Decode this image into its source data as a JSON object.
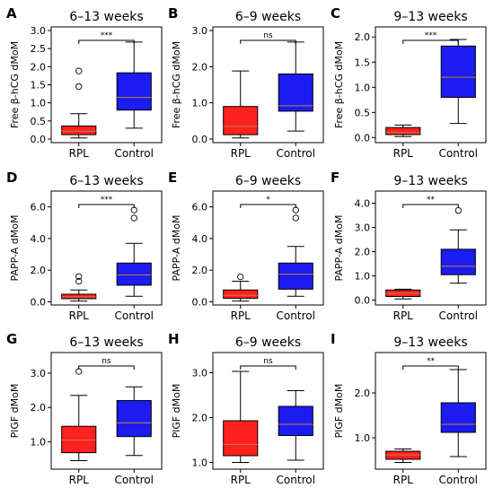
{
  "colors": {
    "rpl": "#ff2020",
    "control": "#1c1cf0",
    "median": "#c08040"
  },
  "chart_data": [
    {
      "type": "box",
      "panel_label": "A",
      "title": "6–13 weeks",
      "ylabel": "Free β-hCG dMoM",
      "ylim": [
        -0.1,
        3.1
      ],
      "yticks": [
        0,
        0.5,
        1,
        1.5,
        2,
        2.5,
        3
      ],
      "yticklabels": [
        "0.0",
        "0.5",
        "1.0",
        "1.5",
        "2.0",
        "2.5",
        "3.0"
      ],
      "categories": [
        "RPL",
        "Control"
      ],
      "significance": "***",
      "boxes": [
        {
          "name": "RPL",
          "whislo": 0.03,
          "q1": 0.12,
          "med": 0.22,
          "q3": 0.36,
          "whishi": 0.7,
          "fliers": [
            1.45,
            1.88
          ]
        },
        {
          "name": "Control",
          "whislo": 0.3,
          "q1": 0.8,
          "med": 1.15,
          "q3": 1.83,
          "whishi": 2.68,
          "fliers": []
        }
      ]
    },
    {
      "type": "box",
      "panel_label": "D",
      "title": "6–13 weeks",
      "ylabel": "PAPP-A dMoM",
      "ylim": [
        -0.2,
        7.0
      ],
      "yticks": [
        0,
        2,
        4,
        6
      ],
      "yticklabels": [
        "0.0",
        "2.0",
        "4.0",
        "6.0"
      ],
      "categories": [
        "RPL",
        "Control"
      ],
      "significance": "***",
      "boxes": [
        {
          "name": "RPL",
          "whislo": 0.05,
          "q1": 0.2,
          "med": 0.32,
          "q3": 0.48,
          "whishi": 0.75,
          "fliers": [
            1.3,
            1.6
          ]
        },
        {
          "name": "Control",
          "whislo": 0.35,
          "q1": 1.05,
          "med": 1.7,
          "q3": 2.45,
          "whishi": 3.7,
          "fliers": [
            5.3,
            5.8
          ]
        }
      ]
    },
    {
      "type": "box",
      "panel_label": "G",
      "title": "6–13 weeks",
      "ylabel": "PlGF dMoM",
      "ylim": [
        0.2,
        3.6
      ],
      "yticks": [
        1,
        2,
        3
      ],
      "yticklabels": [
        "1.0",
        "2.0",
        "3.0"
      ],
      "categories": [
        "RPL",
        "Control"
      ],
      "significance": "ns",
      "boxes": [
        {
          "name": "RPL",
          "whislo": 0.45,
          "q1": 0.68,
          "med": 1.05,
          "q3": 1.45,
          "whishi": 2.35,
          "fliers": [
            3.05
          ]
        },
        {
          "name": "Control",
          "whislo": 0.6,
          "q1": 1.15,
          "med": 1.55,
          "q3": 2.2,
          "whishi": 2.6,
          "fliers": []
        }
      ]
    },
    {
      "type": "box",
      "panel_label": "B",
      "title": "6–9 weeks",
      "ylabel": "Free β-hCG dMoM",
      "ylim": [
        -0.1,
        3.1
      ],
      "yticks": [
        0,
        1,
        2,
        3
      ],
      "yticklabels": [
        "0.0",
        "1.0",
        "2.0",
        "3.0"
      ],
      "categories": [
        "RPL",
        "Control"
      ],
      "significance": "ns",
      "boxes": [
        {
          "name": "RPL",
          "whislo": 0.03,
          "q1": 0.12,
          "med": 0.35,
          "q3": 0.9,
          "whishi": 1.88,
          "fliers": []
        },
        {
          "name": "Control",
          "whislo": 0.22,
          "q1": 0.77,
          "med": 0.92,
          "q3": 1.8,
          "whishi": 2.68,
          "fliers": []
        }
      ]
    },
    {
      "type": "box",
      "panel_label": "E",
      "title": "6–9 weeks",
      "ylabel": "PAPP-A dMoM",
      "ylim": [
        -0.2,
        7.0
      ],
      "yticks": [
        0,
        2,
        4,
        6
      ],
      "yticklabels": [
        "0.0",
        "2.0",
        "4.0",
        "6.0"
      ],
      "categories": [
        "RPL",
        "Control"
      ],
      "significance": "*",
      "boxes": [
        {
          "name": "RPL",
          "whislo": 0.05,
          "q1": 0.22,
          "med": 0.42,
          "q3": 0.75,
          "whishi": 1.3,
          "fliers": [
            1.58
          ]
        },
        {
          "name": "Control",
          "whislo": 0.35,
          "q1": 0.8,
          "med": 1.75,
          "q3": 2.45,
          "whishi": 3.5,
          "fliers": [
            5.3,
            5.8
          ]
        }
      ]
    },
    {
      "type": "box",
      "panel_label": "H",
      "title": "6–9 weeks",
      "ylabel": "PlGF dMoM",
      "ylim": [
        0.85,
        3.45
      ],
      "yticks": [
        1,
        2,
        3
      ],
      "yticklabels": [
        "1.0",
        "2.0",
        "3.0"
      ],
      "categories": [
        "RPL",
        "Control"
      ],
      "significance": "ns",
      "boxes": [
        {
          "name": "RPL",
          "whislo": 1.0,
          "q1": 1.15,
          "med": 1.4,
          "q3": 1.93,
          "whishi": 3.03,
          "fliers": []
        },
        {
          "name": "Control",
          "whislo": 1.05,
          "q1": 1.6,
          "med": 1.85,
          "q3": 2.25,
          "whishi": 2.6,
          "fliers": []
        }
      ]
    },
    {
      "type": "box",
      "panel_label": "C",
      "title": "9–13 weeks",
      "ylabel": "Free β-hCG dMoM",
      "ylim": [
        -0.1,
        2.2
      ],
      "yticks": [
        0,
        0.5,
        1,
        1.5,
        2
      ],
      "yticklabels": [
        "0.0",
        "0.5",
        "1.0",
        "1.5",
        "2.0"
      ],
      "categories": [
        "RPL",
        "Control"
      ],
      "significance": "***",
      "boxes": [
        {
          "name": "RPL",
          "whislo": 0.02,
          "q1": 0.06,
          "med": 0.1,
          "q3": 0.2,
          "whishi": 0.25,
          "fliers": []
        },
        {
          "name": "Control",
          "whislo": 0.28,
          "q1": 0.8,
          "med": 1.2,
          "q3": 1.82,
          "whishi": 1.95,
          "fliers": []
        }
      ]
    },
    {
      "type": "box",
      "panel_label": "F",
      "title": "9–13 weeks",
      "ylabel": "PAPP-A dMoM",
      "ylim": [
        -0.2,
        4.5
      ],
      "yticks": [
        0,
        1,
        2,
        3,
        4
      ],
      "yticklabels": [
        "0.0",
        "1.0",
        "2.0",
        "3.0",
        "4.0"
      ],
      "categories": [
        "RPL",
        "Control"
      ],
      "significance": "**",
      "boxes": [
        {
          "name": "RPL",
          "whislo": 0.05,
          "q1": 0.15,
          "med": 0.28,
          "q3": 0.42,
          "whishi": 0.45,
          "fliers": []
        },
        {
          "name": "Control",
          "whislo": 0.7,
          "q1": 1.05,
          "med": 1.4,
          "q3": 2.1,
          "whishi": 2.9,
          "fliers": [
            3.7
          ]
        }
      ]
    },
    {
      "type": "box",
      "panel_label": "I",
      "title": "9–13 weeks",
      "ylabel": "PlGF dMoM",
      "ylim": [
        0.3,
        2.9
      ],
      "yticks": [
        1,
        2
      ],
      "yticklabels": [
        "1.0",
        "2.0"
      ],
      "categories": [
        "RPL",
        "Control"
      ],
      "significance": "**",
      "boxes": [
        {
          "name": "RPL",
          "whislo": 0.45,
          "q1": 0.52,
          "med": 0.62,
          "q3": 0.7,
          "whishi": 0.75,
          "fliers": []
        },
        {
          "name": "Control",
          "whislo": 0.58,
          "q1": 1.12,
          "med": 1.3,
          "q3": 1.78,
          "whishi": 2.52,
          "fliers": []
        }
      ]
    }
  ]
}
